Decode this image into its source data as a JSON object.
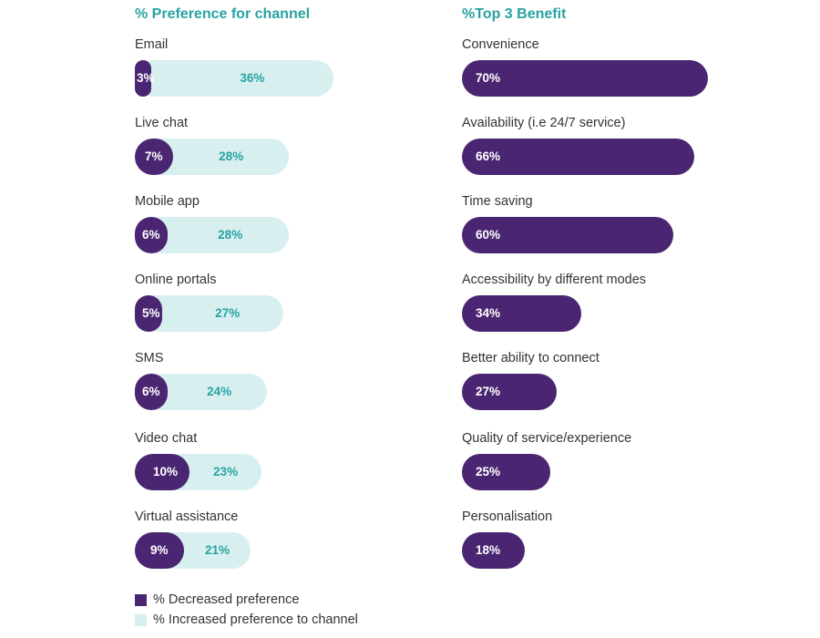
{
  "chart_data": [
    {
      "type": "bar",
      "orientation": "horizontal",
      "stacked": "overlay",
      "title": "% Preference for channel",
      "categories": [
        "Email",
        "Live chat",
        "Mobile app",
        "Online portals",
        "SMS",
        "Video chat",
        "Virtual assistance"
      ],
      "series": [
        {
          "name": "% Decreased preference",
          "values": [
            3,
            7,
            6,
            5,
            6,
            10,
            9
          ],
          "labels": [
            "3%",
            "7%",
            "6%",
            "5%",
            "6%",
            "10%",
            "9%"
          ],
          "color": "#4a2672"
        },
        {
          "name": "% Increased preference to channel",
          "values": [
            36,
            28,
            28,
            27,
            24,
            23,
            21
          ],
          "labels": [
            "36%",
            "28%",
            "28%",
            "27%",
            "24%",
            "23%",
            "21%"
          ],
          "color": "#d8efef"
        }
      ],
      "legend_position": "bottom-left",
      "grid": false
    },
    {
      "type": "bar",
      "orientation": "horizontal",
      "title": "%Top 3 Benefit",
      "categories": [
        "Convenience",
        "Availability (i.e 24/7 service)",
        "Time saving",
        "Accessibility by different modes",
        "Better ability to connect",
        "Quality of service/experience",
        "Personalisation"
      ],
      "series": [
        {
          "values": [
            70,
            66,
            60,
            34,
            27,
            25,
            18
          ],
          "labels": [
            "70%",
            "66%",
            "60%",
            "34%",
            "27%",
            "25%",
            "18%"
          ],
          "color": "#4a2672"
        }
      ],
      "grid": false
    }
  ],
  "legend": {
    "items": [
      {
        "label": "% Decreased preference",
        "color": "#4a2672"
      },
      {
        "label": "% Increased preference to channel",
        "color": "#d8efef"
      }
    ]
  }
}
